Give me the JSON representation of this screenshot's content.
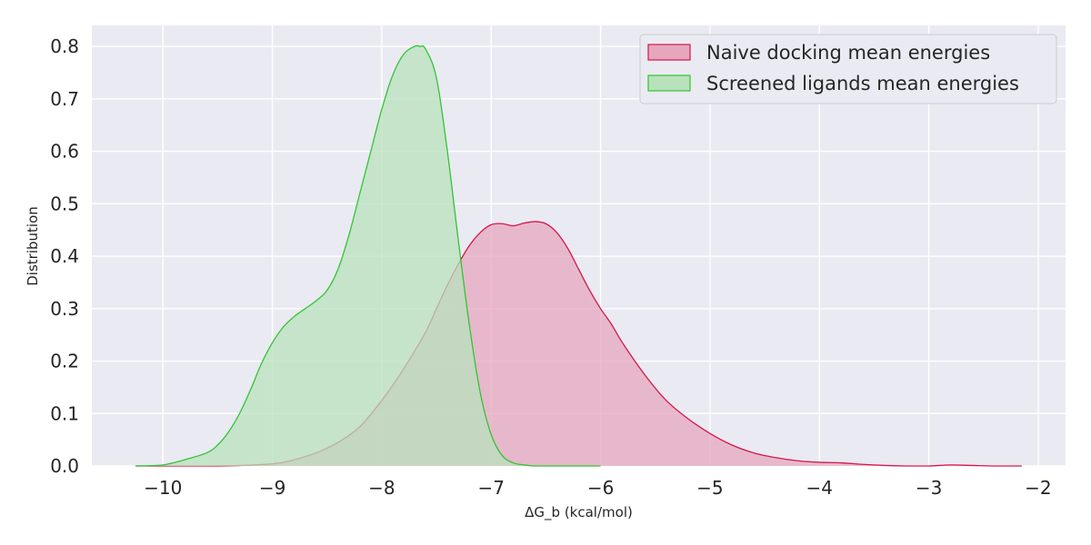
{
  "chart_data": {
    "type": "area",
    "xlabel": "ΔG_b (kcal/mol)",
    "ylabel": "Distribution",
    "xlim": [
      -10.65,
      -1.75
    ],
    "ylim": [
      0,
      0.84
    ],
    "xticks": [
      -10,
      -9,
      -8,
      -7,
      -6,
      -5,
      -4,
      -3,
      -2
    ],
    "xtick_labels": [
      "−10",
      "−9",
      "−8",
      "−7",
      "−6",
      "−5",
      "−4",
      "−3",
      "−2"
    ],
    "yticks": [
      0.0,
      0.1,
      0.2,
      0.3,
      0.4,
      0.5,
      0.6,
      0.7,
      0.8
    ],
    "ytick_labels": [
      "0.0",
      "0.1",
      "0.2",
      "0.3",
      "0.4",
      "0.5",
      "0.6",
      "0.7",
      "0.8"
    ],
    "grid": true,
    "legend_position": "top-right",
    "series": [
      {
        "name": "Naive docking mean energies",
        "line_color": "#d6164a",
        "fill_color": "#e6a7bd",
        "x": [
          -10.25,
          -9.5,
          -9.0,
          -8.8,
          -8.6,
          -8.4,
          -8.2,
          -8.0,
          -7.8,
          -7.6,
          -7.5,
          -7.4,
          -7.3,
          -7.2,
          -7.1,
          -7.0,
          -6.9,
          -6.8,
          -6.7,
          -6.6,
          -6.5,
          -6.4,
          -6.3,
          -6.2,
          -6.1,
          -6.0,
          -5.9,
          -5.8,
          -5.6,
          -5.4,
          -5.2,
          -5.0,
          -4.8,
          -4.6,
          -4.4,
          -4.2,
          -4.0,
          -3.8,
          -3.6,
          -3.4,
          -3.2,
          -3.0,
          -2.8,
          -2.6,
          -2.4,
          -2.15
        ],
        "y": [
          0.0,
          0.0,
          0.004,
          0.012,
          0.025,
          0.045,
          0.075,
          0.125,
          0.185,
          0.255,
          0.3,
          0.345,
          0.385,
          0.42,
          0.445,
          0.46,
          0.462,
          0.458,
          0.463,
          0.466,
          0.462,
          0.445,
          0.415,
          0.375,
          0.335,
          0.3,
          0.27,
          0.235,
          0.175,
          0.125,
          0.09,
          0.062,
          0.04,
          0.025,
          0.016,
          0.01,
          0.007,
          0.006,
          0.003,
          0.001,
          0.0,
          0.0,
          0.002,
          0.001,
          0.0,
          0.0
        ]
      },
      {
        "name": "Screened ligands mean energies",
        "line_color": "#33c433",
        "fill_color": "#b8e2bc",
        "x": [
          -10.25,
          -10.0,
          -9.8,
          -9.6,
          -9.5,
          -9.4,
          -9.3,
          -9.2,
          -9.1,
          -9.0,
          -8.9,
          -8.8,
          -8.7,
          -8.6,
          -8.5,
          -8.4,
          -8.3,
          -8.2,
          -8.1,
          -8.0,
          -7.9,
          -7.8,
          -7.7,
          -7.65,
          -7.6,
          -7.5,
          -7.4,
          -7.3,
          -7.2,
          -7.1,
          -7.0,
          -6.9,
          -6.8,
          -6.7,
          -6.6,
          -6.4,
          -6.2,
          -6.0
        ],
        "y": [
          0.0,
          0.002,
          0.012,
          0.025,
          0.04,
          0.065,
          0.1,
          0.145,
          0.195,
          0.235,
          0.265,
          0.285,
          0.3,
          0.315,
          0.335,
          0.375,
          0.44,
          0.52,
          0.6,
          0.68,
          0.745,
          0.785,
          0.8,
          0.8,
          0.795,
          0.74,
          0.6,
          0.43,
          0.27,
          0.14,
          0.06,
          0.02,
          0.006,
          0.002,
          0.0,
          0.0,
          0.0,
          0.0
        ]
      }
    ]
  }
}
